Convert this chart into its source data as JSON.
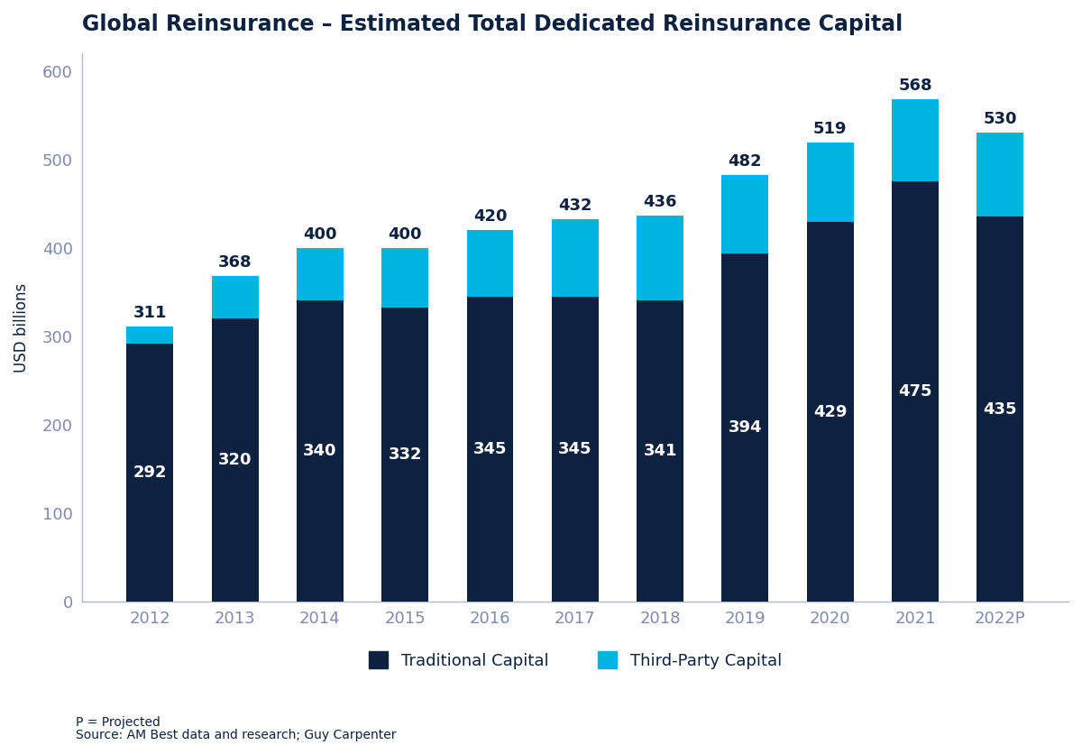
{
  "title": "Global Reinsurance – Estimated Total Dedicated Reinsurance Capital",
  "years": [
    "2012",
    "2013",
    "2014",
    "2015",
    "2016",
    "2017",
    "2018",
    "2019",
    "2020",
    "2021",
    "2022P"
  ],
  "traditional": [
    292,
    320,
    340,
    332,
    345,
    345,
    341,
    394,
    429,
    475,
    435
  ],
  "third_party": [
    19,
    48,
    60,
    68,
    75,
    87,
    95,
    88,
    90,
    93,
    95
  ],
  "totals": [
    311,
    368,
    400,
    400,
    420,
    432,
    436,
    482,
    519,
    568,
    530
  ],
  "traditional_color": "#0d2240",
  "third_party_color": "#00b5e2",
  "background_color": "#ffffff",
  "title_color": "#0d2240",
  "ylabel": "USD billions",
  "ylim": [
    0,
    620
  ],
  "yticks": [
    0,
    100,
    200,
    300,
    400,
    500,
    600
  ],
  "tick_color": "#7f8ab0",
  "label_color": "#0d2240",
  "total_label_color": "#0d2240",
  "legend_traditional": "Traditional Capital",
  "legend_third_party": "Third-Party Capital",
  "footnote1": "P = Projected",
  "footnote2": "Source: AM Best data and research; Guy Carpenter",
  "title_fontsize": 17,
  "axis_label_fontsize": 12,
  "tick_fontsize": 13,
  "bar_label_fontsize": 13,
  "total_label_fontsize": 13,
  "legend_fontsize": 13,
  "footnote_fontsize": 10,
  "spine_color": "#b0b8cc"
}
